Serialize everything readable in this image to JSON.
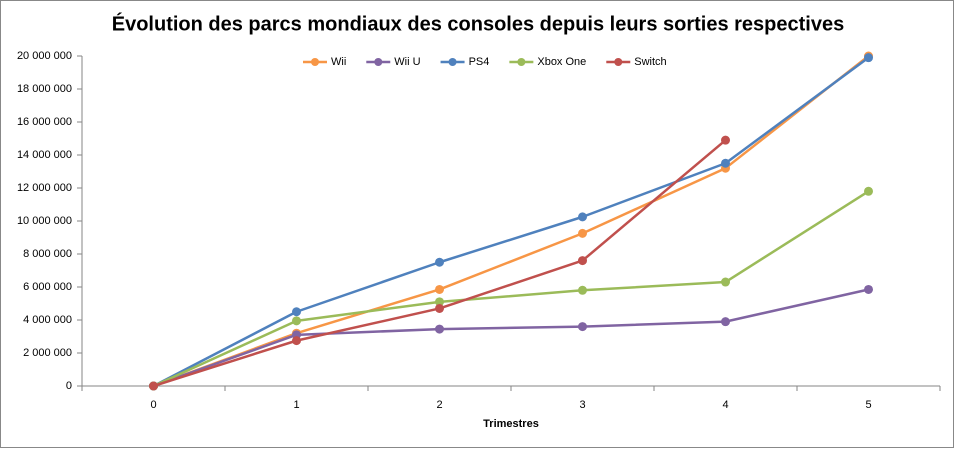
{
  "chart_data": {
    "type": "line",
    "title": "Évolution des parcs mondiaux des consoles depuis leurs sorties respectives",
    "x_label": "Trimestres",
    "categories": [
      "0",
      "1",
      "2",
      "3",
      "4",
      "5"
    ],
    "series": [
      {
        "name": "Wii",
        "color": "#f79646",
        "values": [
          0,
          3200000,
          5850000,
          9250000,
          13200000,
          20000000
        ]
      },
      {
        "name": "Wii U",
        "color": "#8064a2",
        "values": [
          0,
          3100000,
          3450000,
          3600000,
          3900000,
          5850000
        ]
      },
      {
        "name": "PS4",
        "color": "#4f81bd",
        "values": [
          0,
          4500000,
          7500000,
          10250000,
          13500000,
          19900000
        ]
      },
      {
        "name": "Xbox One",
        "color": "#9bbb59",
        "values": [
          0,
          3950000,
          5100000,
          5800000,
          6300000,
          11800000
        ]
      },
      {
        "name": "Switch",
        "color": "#c0504d",
        "values": [
          0,
          2750000,
          4700000,
          7600000,
          14900000,
          null
        ]
      }
    ],
    "ylim": [
      0,
      20000000
    ],
    "yticks": [
      0,
      {
        "value": 2000000,
        "label": "2 000 000"
      },
      {
        "value": 4000000,
        "label": "4 000 000"
      },
      {
        "value": 6000000,
        "label": "6 000 000"
      },
      {
        "value": 8000000,
        "label": "8 000 000"
      },
      {
        "value": 10000000,
        "label": "10 000 000"
      },
      {
        "value": 12000000,
        "label": "12 000 000"
      },
      {
        "value": 14000000,
        "label": "14 000 000"
      },
      {
        "value": 16000000,
        "label": "16 000 000"
      },
      {
        "value": 18000000,
        "label": "18 000 000"
      },
      {
        "value": 20000000,
        "label": "20 000 000"
      }
    ],
    "grid": false,
    "legend": "top"
  }
}
